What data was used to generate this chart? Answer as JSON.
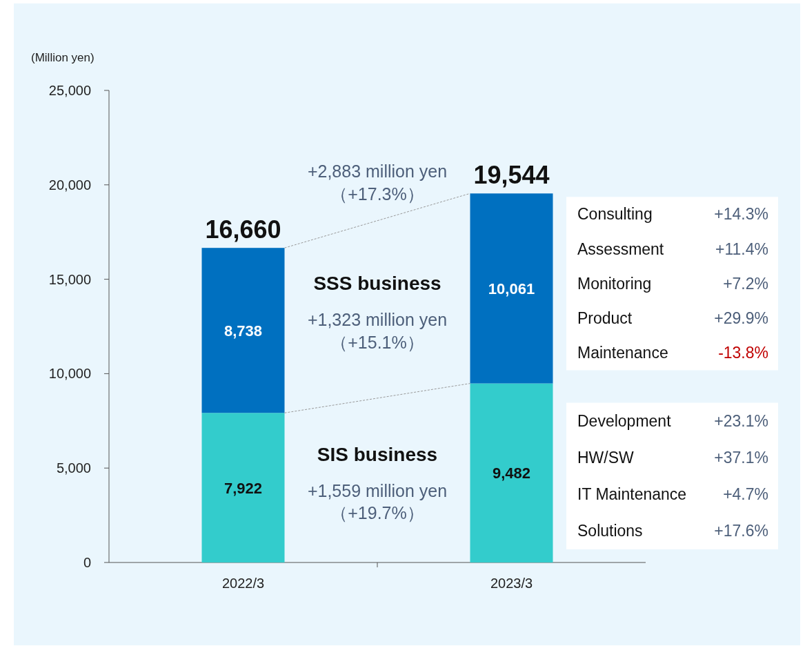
{
  "chart_data": {
    "type": "bar",
    "stacked": true,
    "ylabel": "(Million yen)",
    "categories": [
      "2022/3",
      "2023/3"
    ],
    "series": [
      {
        "name": "SIS business",
        "color": "#33cccc",
        "values": [
          7922,
          9482
        ],
        "value_labels": [
          "7,922",
          "9,482"
        ]
      },
      {
        "name": "SSS business",
        "color": "#0070c0",
        "values": [
          8738,
          10061
        ],
        "value_labels": [
          "8,738",
          "10,061"
        ]
      }
    ],
    "totals": [
      "16,660",
      "19,544"
    ],
    "ylim": [
      0,
      25000
    ],
    "yticks": [
      0,
      {
        "value": 5000,
        "label": "5,000"
      },
      {
        "value": 10000,
        "label": "10,000"
      },
      {
        "value": 15000,
        "label": "15,000"
      },
      {
        "value": 20000,
        "label": "20,000"
      },
      {
        "value": 25000,
        "label": "25,000"
      }
    ],
    "annotations": [
      "+2,883 million yen\n（+17.3%）",
      "+1,559 million yen\n（+19.7%）",
      "+1,323 million yen\n（+15.1%）",
      "Consulting",
      "+14.3%",
      "Assessment",
      "+11.4%",
      "Monitoring",
      "+7.2%",
      "Product",
      "+29.9%",
      "Maintenance",
      "-13.8%",
      "Development",
      "+23.1%",
      "HW/SW",
      "+37.1%",
      "IT Maintenance",
      "+4.7%",
      "Solutions",
      "+17.6%"
    ]
  }
}
